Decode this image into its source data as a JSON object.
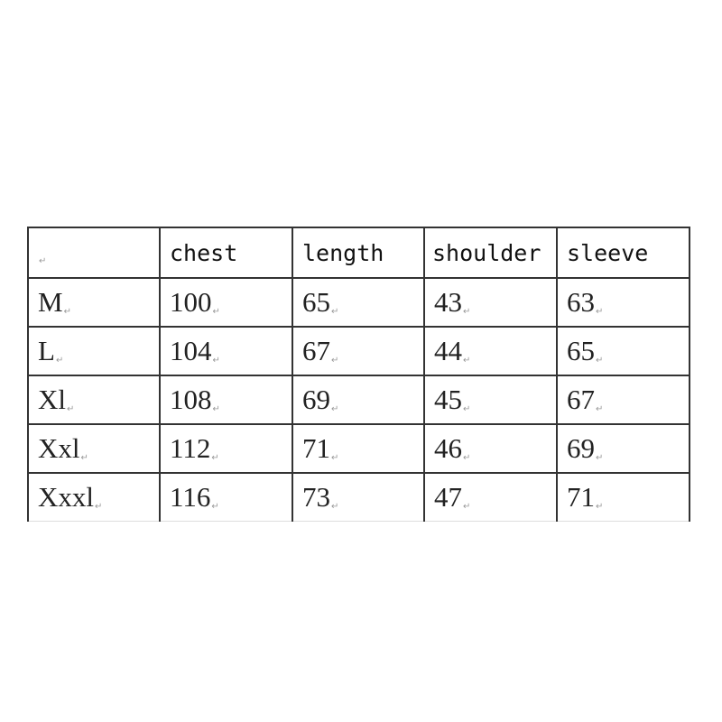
{
  "table": {
    "headers": [
      "",
      "chest",
      "length",
      "shoulder",
      "sleeve"
    ],
    "rows": [
      {
        "size": "M",
        "chest": "100",
        "length": "65",
        "shoulder": "43",
        "sleeve": "63"
      },
      {
        "size": "L",
        "chest": "104",
        "length": "67",
        "shoulder": "44",
        "sleeve": "65"
      },
      {
        "size": "Xl",
        "chest": "108",
        "length": "69",
        "shoulder": "45",
        "sleeve": "67"
      },
      {
        "size": "Xxl",
        "chest": "112",
        "length": "71",
        "shoulder": "46",
        "sleeve": "69"
      },
      {
        "size": "Xxxl",
        "chest": "116",
        "length": "73",
        "shoulder": "47",
        "sleeve": "71"
      }
    ]
  }
}
